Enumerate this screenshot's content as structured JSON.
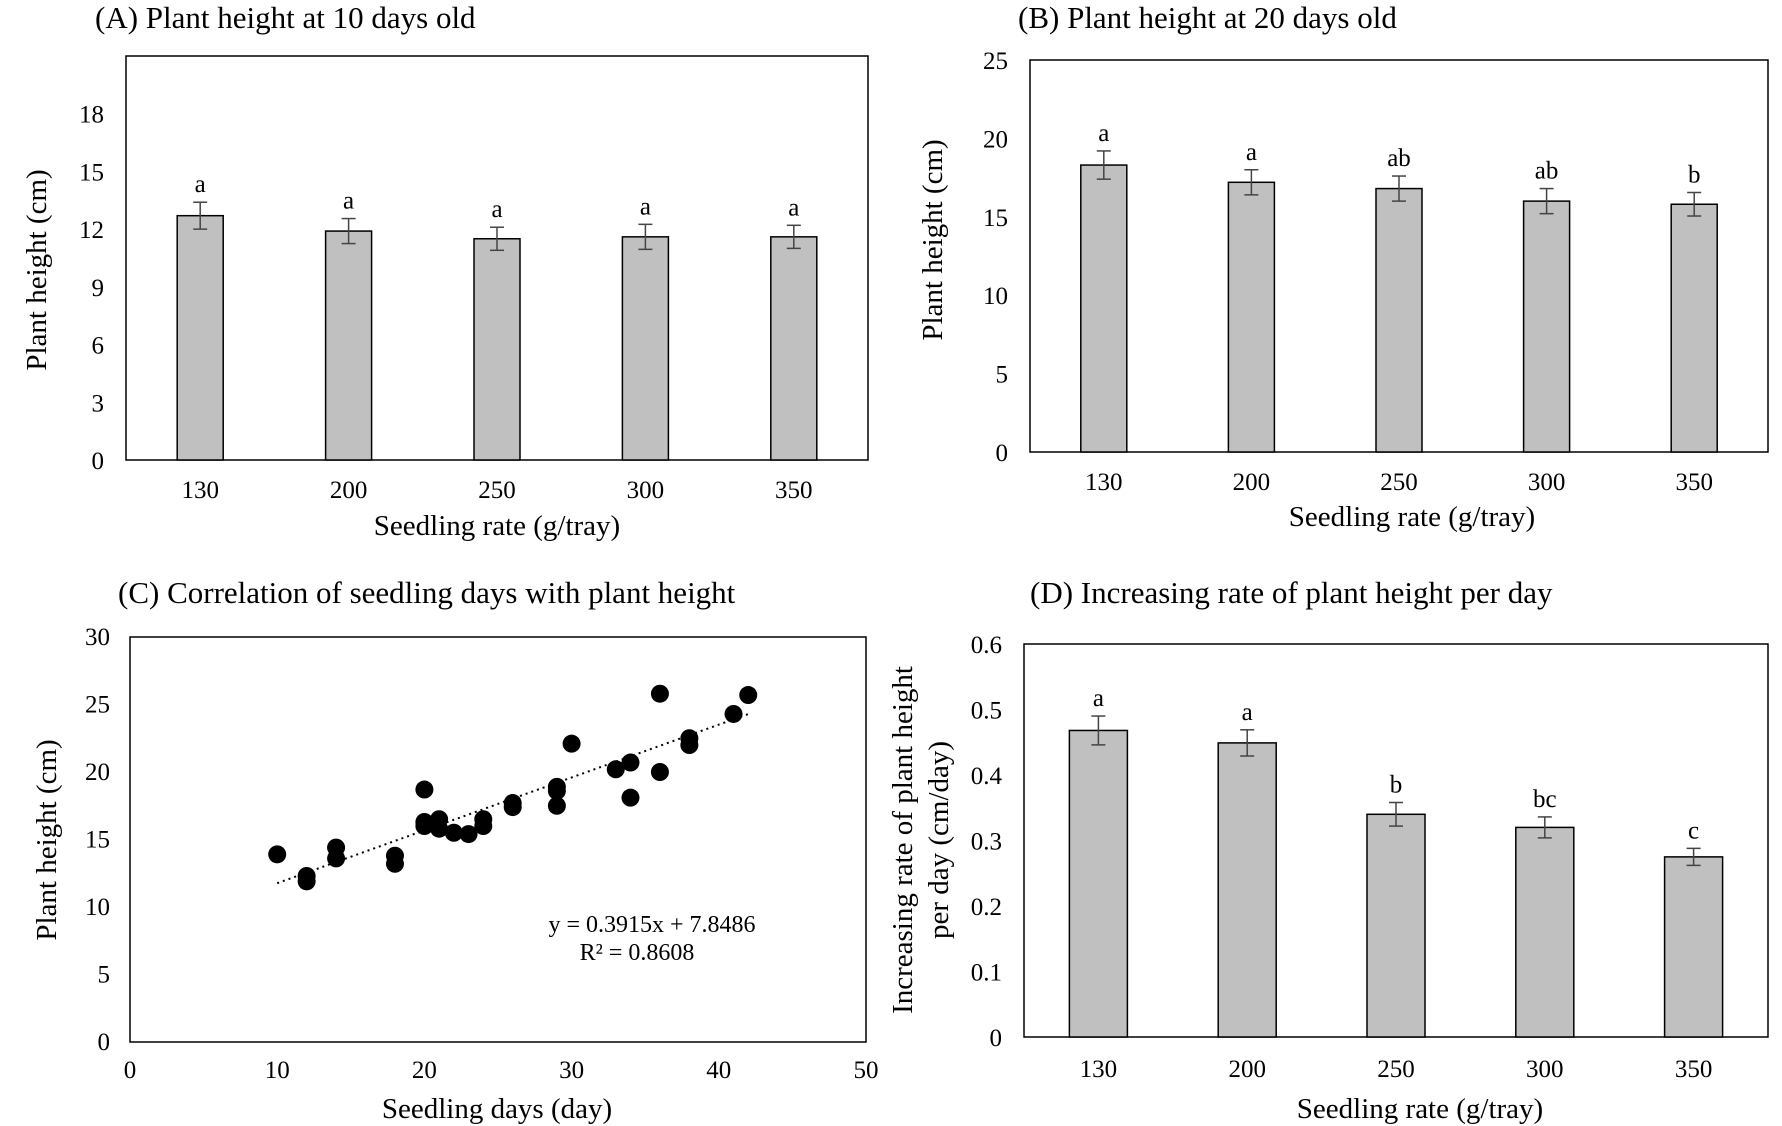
{
  "chart_data": [
    {
      "id": "A",
      "type": "bar",
      "title": "(A) Plant height at 10 days old",
      "xlabel": "Seedling rate (g/tray)",
      "ylabel": "Plant height (cm)",
      "categories": [
        "130",
        "200",
        "250",
        "300",
        "350"
      ],
      "values": [
        12.7,
        11.9,
        11.5,
        11.6,
        11.6
      ],
      "errors": [
        0.7,
        0.65,
        0.6,
        0.65,
        0.6
      ],
      "letters": [
        "a",
        "a",
        "a",
        "a",
        "a"
      ],
      "ylim": [
        0,
        21
      ],
      "yticks": [
        0,
        3,
        6,
        9,
        12,
        15,
        18
      ],
      "bar_color": "#c0c0c0"
    },
    {
      "id": "B",
      "type": "bar",
      "title": "(B) Plant height at 20 days old",
      "xlabel": "Seedling rate (g/tray)",
      "ylabel": "Plant height (cm)",
      "categories": [
        "130",
        "200",
        "250",
        "300",
        "350"
      ],
      "values": [
        18.3,
        17.2,
        16.8,
        16.0,
        15.8
      ],
      "errors": [
        0.9,
        0.8,
        0.8,
        0.8,
        0.75
      ],
      "letters": [
        "a",
        "a",
        "ab",
        "ab",
        "b"
      ],
      "ylim": [
        0,
        25
      ],
      "yticks": [
        0,
        5,
        10,
        15,
        20,
        25
      ],
      "bar_color": "#c0c0c0"
    },
    {
      "id": "C",
      "type": "scatter",
      "title": "(C) Correlation of seedling days with plant height",
      "xlabel": "Seedling days (day)",
      "ylabel": "Plant height (cm)",
      "xlim": [
        0,
        50
      ],
      "ylim": [
        0,
        30
      ],
      "xticks": [
        0,
        10,
        20,
        30,
        40,
        50
      ],
      "yticks": [
        0,
        5,
        10,
        15,
        20,
        25,
        30
      ],
      "points": [
        [
          10,
          13.9
        ],
        [
          12,
          12.3
        ],
        [
          12,
          11.9
        ],
        [
          14,
          14.4
        ],
        [
          14,
          13.6
        ],
        [
          18,
          13.8
        ],
        [
          18,
          13.2
        ],
        [
          20,
          18.7
        ],
        [
          20,
          16.3
        ],
        [
          20,
          16.0
        ],
        [
          21,
          16.5
        ],
        [
          21,
          15.8
        ],
        [
          22,
          15.5
        ],
        [
          23,
          15.4
        ],
        [
          24,
          16.5
        ],
        [
          24,
          16.0
        ],
        [
          26,
          17.7
        ],
        [
          26,
          17.4
        ],
        [
          29,
          18.9
        ],
        [
          29,
          18.6
        ],
        [
          29,
          17.5
        ],
        [
          30,
          22.1
        ],
        [
          33,
          20.2
        ],
        [
          34,
          20.7
        ],
        [
          34,
          18.1
        ],
        [
          36,
          25.8
        ],
        [
          36,
          20.0
        ],
        [
          38,
          22.5
        ],
        [
          38,
          22.0
        ],
        [
          41,
          24.3
        ],
        [
          42,
          25.7
        ]
      ],
      "trendline": {
        "slope": 0.3915,
        "intercept": 7.8486,
        "x_range": [
          10,
          42
        ]
      },
      "equation": "y = 0.3915x + 7.8486",
      "r2": "R² = 0.8608"
    },
    {
      "id": "D",
      "type": "bar",
      "title": "(D) Increasing rate of plant height per day",
      "xlabel": "Seedling rate (g/tray)",
      "ylabel_line1": "Increasing rate of plant height",
      "ylabel_line2": "per day (cm/day)",
      "categories": [
        "130",
        "200",
        "250",
        "300",
        "350"
      ],
      "values": [
        0.468,
        0.449,
        0.34,
        0.32,
        0.275
      ],
      "errors": [
        0.022,
        0.02,
        0.018,
        0.016,
        0.013
      ],
      "letters": [
        "a",
        "a",
        "b",
        "bc",
        "c"
      ],
      "ylim": [
        0,
        0.6
      ],
      "yticks": [
        "0",
        "0.1",
        "0.2",
        "0.3",
        "0.4",
        "0.5",
        "0.6"
      ],
      "bar_color": "#c0c0c0"
    }
  ]
}
